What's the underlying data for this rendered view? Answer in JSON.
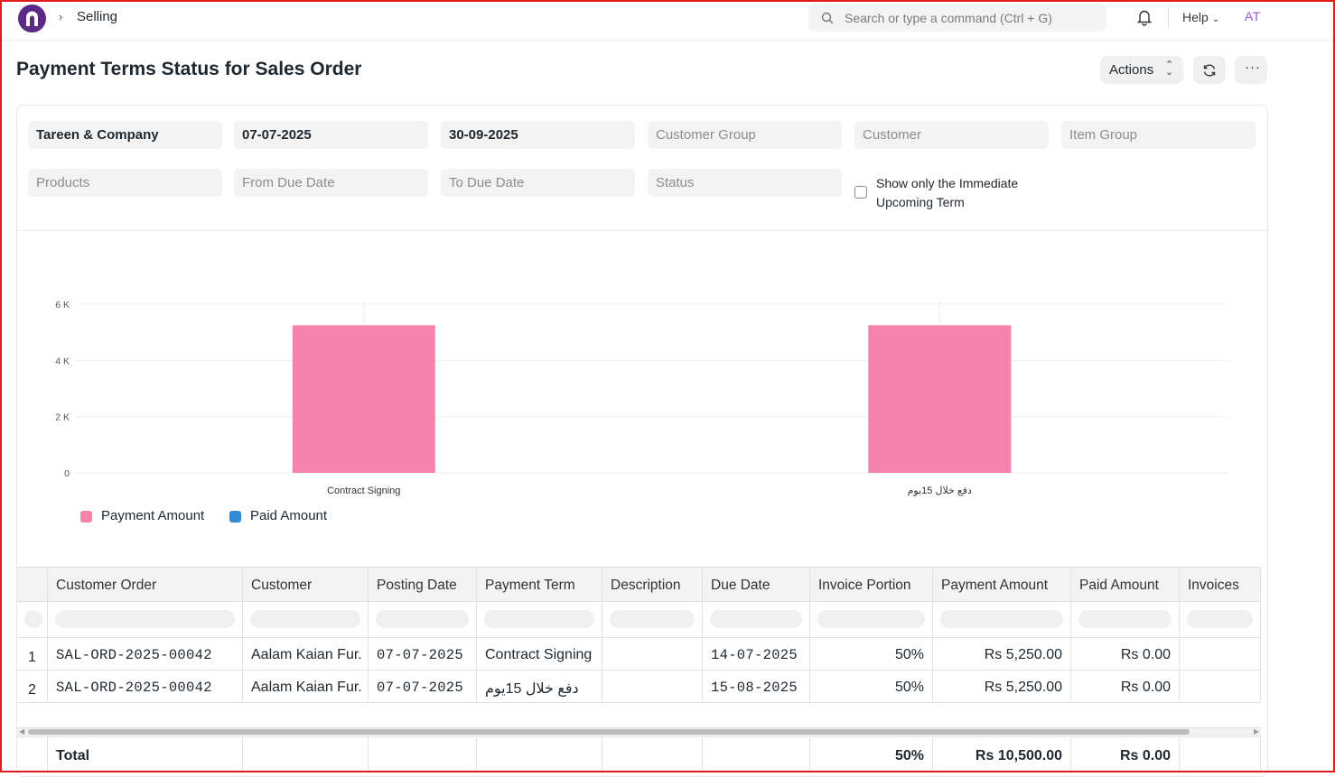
{
  "navbar": {
    "breadcrumb": "Selling",
    "search_placeholder": "Search or type a command (Ctrl + G)",
    "help_label": "Help",
    "avatar_initials": "AT"
  },
  "page": {
    "title": "Payment Terms Status for Sales Order",
    "actions_label": "Actions",
    "more_label": "···"
  },
  "filters": {
    "company": "Tareen & Company",
    "from_date": "07-07-2025",
    "to_date": "30-09-2025",
    "customer_group": "Customer Group",
    "customer": "Customer",
    "item_group": "Item Group",
    "products": "Products",
    "from_due_date": "From Due Date",
    "to_due_date": "To Due Date",
    "status": "Status",
    "immediate_term_label": "Show only the Immediate Upcoming Term",
    "immediate_term_checked": false
  },
  "chart_data": {
    "type": "bar",
    "categories": [
      "Contract Signing",
      "دفع خلال 15يوم"
    ],
    "series": [
      {
        "name": "Payment Amount",
        "values": [
          5250,
          5250
        ],
        "color": "#f683ae"
      },
      {
        "name": "Paid Amount",
        "values": [
          0,
          0
        ],
        "color": "#318ad8"
      }
    ],
    "yticks": [
      "0",
      "2 K",
      "4 K",
      "6 K"
    ],
    "ylim": [
      0,
      6000
    ],
    "legend_position": "bottom-left",
    "grid": true
  },
  "table": {
    "columns": [
      "Customer Order",
      "Customer",
      "Posting Date",
      "Payment Term",
      "Description",
      "Due Date",
      "Invoice Portion",
      "Payment Amount",
      "Paid Amount",
      "Invoices"
    ],
    "rows": [
      {
        "idx": "1",
        "order": "SAL-ORD-2025-00042",
        "customer": "Aalam Kaian Fur.",
        "posting_date": "07-07-2025",
        "payment_term": "Contract Signing",
        "description": "",
        "due_date": "14-07-2025",
        "invoice_portion": "50%",
        "payment_amount": "Rs 5,250.00",
        "paid_amount": "Rs 0.00",
        "invoices": ""
      },
      {
        "idx": "2",
        "order": "SAL-ORD-2025-00042",
        "customer": "Aalam Kaian Fur.",
        "posting_date": "07-07-2025",
        "payment_term": "دفع خلال 15يوم",
        "description": "",
        "due_date": "15-08-2025",
        "invoice_portion": "50%",
        "payment_amount": "Rs 5,250.00",
        "paid_amount": "Rs 0.00",
        "invoices": ""
      }
    ],
    "total": {
      "label": "Total",
      "invoice_portion": "50%",
      "payment_amount": "Rs 10,500.00",
      "paid_amount": "Rs 0.00"
    }
  }
}
